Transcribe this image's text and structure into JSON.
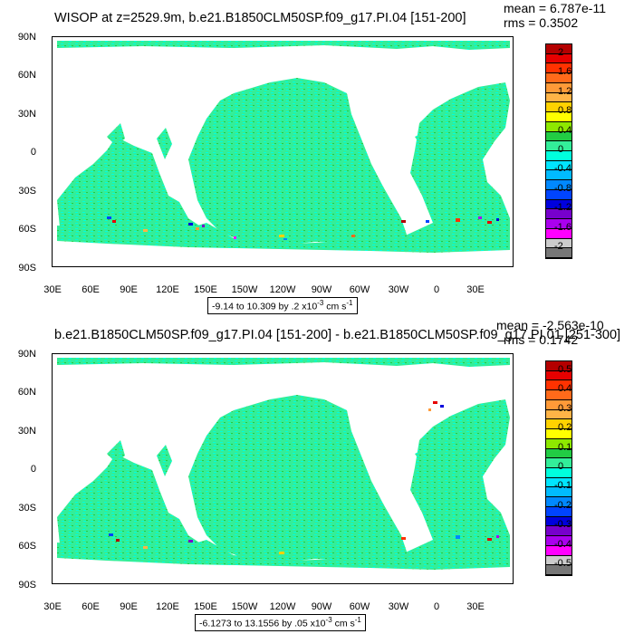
{
  "panels": [
    {
      "title": "WISOP at z=2529.9m, b.e21.B1850CLM50SP.f09_g17.PI.04 [151-200]",
      "mean": "mean = 6.787e-11",
      "rms": "rms = 0.3502",
      "info": "-9.14 to 10.309 by .2 x10",
      "info_exp": "-3",
      "info_units": " cm s",
      "info_units_exp": "-1",
      "colorbar_labels": [
        "2",
        "1.6",
        "1.2",
        "0.8",
        "0.4",
        "0",
        "-0.4",
        "-0.8",
        "-1.2",
        "-1.6",
        "-2"
      ],
      "lat_labels": [
        "90N",
        "60N",
        "30N",
        "0",
        "30S",
        "60S",
        "90S"
      ],
      "lon_labels": [
        "30E",
        "60E",
        "90E",
        "120E",
        "150E",
        "150W",
        "120W",
        "90W",
        "60W",
        "30W",
        "0",
        "30E"
      ]
    },
    {
      "title": "b.e21.B1850CLM50SP.f09_g17.PI.04 [151-200] - b.e21.B1850CLM50SP.f09_g17.PI.01 [251-300]",
      "mean": "mean = -2.563e-10",
      "rms": "rms = 0.1742",
      "info": "-6.1273 to 13.1556 by .05 x10",
      "info_exp": "-3",
      "info_units": " cm s",
      "info_units_exp": "-1",
      "colorbar_labels": [
        "0.5",
        "0.4",
        "0.3",
        "0.2",
        "0.1",
        "0",
        "-0.1",
        "-0.2",
        "-0.3",
        "-0.4",
        "-0.5"
      ],
      "lat_labels": [
        "90N",
        "60N",
        "30N",
        "0",
        "30S",
        "60S",
        "90S"
      ],
      "lon_labels": [
        "30E",
        "60E",
        "90E",
        "120E",
        "150E",
        "150W",
        "120W",
        "90W",
        "60W",
        "30W",
        "0",
        "30E"
      ]
    }
  ],
  "colorbar_colors": [
    "#b40000",
    "#e60000",
    "#ff3200",
    "#ff6a1a",
    "#ff9a38",
    "#ffb447",
    "#ffd200",
    "#ffff00",
    "#8ee800",
    "#22cc44",
    "#33ee99",
    "#00ffdd",
    "#00e5ff",
    "#00bbff",
    "#0088ff",
    "#0044ff",
    "#0000dd",
    "#7700cc",
    "#aa00ee",
    "#ff00ff",
    "#cccccc",
    "#777777"
  ],
  "chart_data": [
    {
      "type": "heatmap",
      "title": "WISOP at z=2529.9m, b.e21.B1850CLM50SP.f09_g17.PI.04 [151-200]",
      "xlabel": "",
      "ylabel": "",
      "x_ticks": [
        "30E",
        "60E",
        "90E",
        "120E",
        "150E",
        "150W",
        "120W",
        "90W",
        "60W",
        "30W",
        "0",
        "30E"
      ],
      "y_ticks": [
        "90N",
        "60N",
        "30N",
        "0",
        "30S",
        "60S",
        "90S"
      ],
      "color_levels": [
        -2,
        -1.6,
        -1.2,
        -0.8,
        -0.4,
        0,
        0.4,
        0.8,
        1.2,
        1.6,
        2
      ],
      "value_range": [
        -9.14,
        10.309
      ],
      "contour_interval": 0.2,
      "units": "x10^-3 cm s^-1",
      "mean": 6.787e-11,
      "rms": 0.3502
    },
    {
      "type": "heatmap",
      "title": "b.e21.B1850CLM50SP.f09_g17.PI.04 [151-200] - b.e21.B1850CLM50SP.f09_g17.PI.01 [251-300]",
      "xlabel": "",
      "ylabel": "",
      "x_ticks": [
        "30E",
        "60E",
        "90E",
        "120E",
        "150E",
        "150W",
        "120W",
        "90W",
        "60W",
        "30W",
        "0",
        "30E"
      ],
      "y_ticks": [
        "90N",
        "60N",
        "30N",
        "0",
        "30S",
        "60S",
        "90S"
      ],
      "color_levels": [
        -0.5,
        -0.4,
        -0.3,
        -0.2,
        -0.1,
        0,
        0.1,
        0.2,
        0.3,
        0.4,
        0.5
      ],
      "value_range": [
        -6.1273,
        13.1556
      ],
      "contour_interval": 0.05,
      "units": "x10^-3 cm s^-1",
      "mean": -2.563e-10,
      "rms": 0.1742
    }
  ]
}
